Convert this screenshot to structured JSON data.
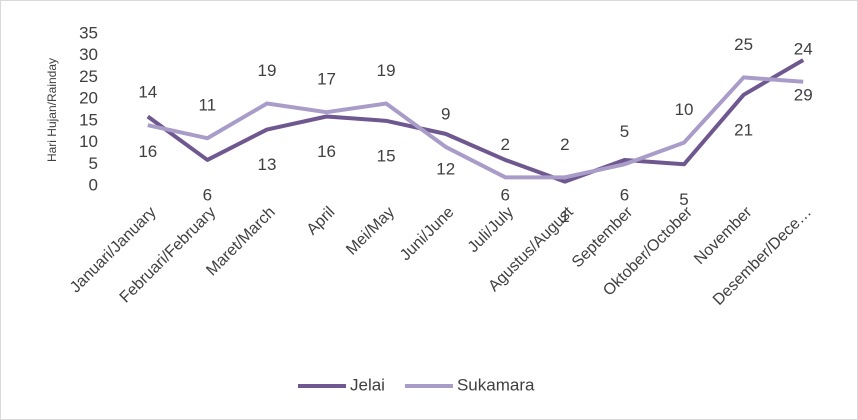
{
  "chart_data": {
    "type": "line",
    "y_label": "Hari Hujan/Rainday",
    "categories": [
      "Januari/January",
      "Februari/February",
      "Maret/March",
      "April",
      "Mei/May",
      "Juni/June",
      "Juli/July",
      "Agustus/August",
      "September",
      "Oktober/October",
      "November",
      "Desember/Dece…"
    ],
    "series": [
      {
        "name": "Jelai",
        "color": "#6f578f",
        "values": [
          16,
          6,
          13,
          16,
          15,
          12,
          6,
          1,
          6,
          5,
          21,
          29
        ]
      },
      {
        "name": "Sukamara",
        "color": "#a99cc9",
        "values": [
          14,
          11,
          19,
          17,
          19,
          9,
          2,
          2,
          5,
          10,
          25,
          24
        ]
      }
    ],
    "ylim": [
      0,
      35
    ],
    "yticks": [
      0,
      5,
      10,
      15,
      20,
      25,
      30,
      35
    ],
    "grid": false,
    "legend": "bottom"
  }
}
